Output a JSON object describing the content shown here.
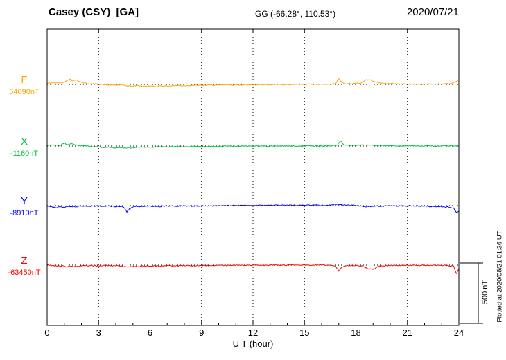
{
  "header": {
    "station": "Casey (CSY)  [GA]",
    "coords": "GG (-66.28°, 110.53°)",
    "date": "2020/07/21"
  },
  "xaxis": {
    "label": "U T (hour)"
  },
  "scale_bar": {
    "label": "500 nT",
    "nT": 500
  },
  "plotted_at": "Plotted at 2020/08/21 01:36 UT",
  "chart_data": {
    "type": "line",
    "title": "Casey (CSY) [GA] magnetogram",
    "subtitle": "GG (-66.28°, 110.53°)",
    "date": "2020/07/21",
    "xlabel": "U T (hour)",
    "x_range": [
      0,
      24
    ],
    "x_ticks": [
      0,
      3,
      6,
      9,
      12,
      15,
      18,
      21,
      24
    ],
    "x_minor_step": 1,
    "grid": "vertical-dotted-at-major-ticks, dotted-baseline-per-trace",
    "scale_nT_per_div": 500,
    "noise_nT": 4,
    "series": [
      {
        "name": "F",
        "baseline_label": "64090nT",
        "color": "#ffa500",
        "points": [
          [
            0,
            10
          ],
          [
            0.3,
            12
          ],
          [
            0.8,
            15
          ],
          [
            1,
            20
          ],
          [
            1.3,
            45
          ],
          [
            1.5,
            30
          ],
          [
            1.7,
            38
          ],
          [
            2,
            18
          ],
          [
            2.3,
            8
          ],
          [
            2.6,
            4
          ],
          [
            3,
            2
          ],
          [
            3.5,
            -3
          ],
          [
            4,
            -6
          ],
          [
            4.3,
            -2
          ],
          [
            4.6,
            -10
          ],
          [
            5,
            -14
          ],
          [
            5.3,
            -8
          ],
          [
            5.6,
            -16
          ],
          [
            6,
            -12
          ],
          [
            6.3,
            -18
          ],
          [
            6.6,
            -10
          ],
          [
            7,
            -14
          ],
          [
            7.5,
            -8
          ],
          [
            8,
            -10
          ],
          [
            8.5,
            -6
          ],
          [
            9,
            -8
          ],
          [
            9.5,
            -4
          ],
          [
            10,
            -6
          ],
          [
            10.5,
            -2
          ],
          [
            11,
            -4
          ],
          [
            11.5,
            -2
          ],
          [
            12,
            -3
          ],
          [
            12.5,
            -1
          ],
          [
            13,
            -2
          ],
          [
            13.5,
            0
          ],
          [
            14,
            -1
          ],
          [
            14.5,
            1
          ],
          [
            15,
            0
          ],
          [
            15.5,
            1
          ],
          [
            16,
            0
          ],
          [
            16.5,
            2
          ],
          [
            16.8,
            5
          ],
          [
            17,
            48
          ],
          [
            17.2,
            15
          ],
          [
            17.5,
            5
          ],
          [
            18,
            8
          ],
          [
            18.3,
            12
          ],
          [
            18.6,
            40
          ],
          [
            18.9,
            35
          ],
          [
            19.2,
            18
          ],
          [
            19.5,
            10
          ],
          [
            20,
            6
          ],
          [
            20.5,
            4
          ],
          [
            21,
            3
          ],
          [
            21.5,
            2
          ],
          [
            22,
            2
          ],
          [
            22.5,
            3
          ],
          [
            23,
            4
          ],
          [
            23.5,
            6
          ],
          [
            23.8,
            20
          ],
          [
            24,
            40
          ]
        ]
      },
      {
        "name": "X",
        "baseline_label": "-1160nT",
        "color": "#00c040",
        "points": [
          [
            0,
            5
          ],
          [
            0.4,
            8
          ],
          [
            0.8,
            6
          ],
          [
            1,
            25
          ],
          [
            1.2,
            10
          ],
          [
            1.4,
            20
          ],
          [
            1.6,
            8
          ],
          [
            2,
            2
          ],
          [
            2.5,
            -2
          ],
          [
            3,
            -8
          ],
          [
            3.3,
            -14
          ],
          [
            3.6,
            -10
          ],
          [
            4,
            -16
          ],
          [
            4.3,
            -12
          ],
          [
            4.6,
            -18
          ],
          [
            5,
            -12
          ],
          [
            5.5,
            -8
          ],
          [
            6,
            -10
          ],
          [
            6.5,
            -6
          ],
          [
            7,
            -8
          ],
          [
            7.5,
            -4
          ],
          [
            8,
            -6
          ],
          [
            8.5,
            -3
          ],
          [
            9,
            -4
          ],
          [
            9.5,
            -2
          ],
          [
            10,
            -3
          ],
          [
            10.5,
            -1
          ],
          [
            11,
            -2
          ],
          [
            12,
            -1
          ],
          [
            13,
            0
          ],
          [
            14,
            0
          ],
          [
            15,
            1
          ],
          [
            16,
            0
          ],
          [
            16.6,
            2
          ],
          [
            16.9,
            8
          ],
          [
            17.1,
            42
          ],
          [
            17.3,
            12
          ],
          [
            17.6,
            4
          ],
          [
            18,
            6
          ],
          [
            18.4,
            10
          ],
          [
            18.7,
            8
          ],
          [
            19,
            5
          ],
          [
            19.5,
            3
          ],
          [
            20,
            2
          ],
          [
            21,
            1
          ],
          [
            22,
            0
          ],
          [
            23,
            1
          ],
          [
            23.5,
            2
          ],
          [
            24,
            0
          ]
        ]
      },
      {
        "name": "Y",
        "baseline_label": "-8910nT",
        "color": "#0000ff",
        "points": [
          [
            0,
            -5
          ],
          [
            0.3,
            -12
          ],
          [
            0.5,
            -18
          ],
          [
            0.7,
            -10
          ],
          [
            1,
            -14
          ],
          [
            1.3,
            -6
          ],
          [
            1.6,
            -10
          ],
          [
            2,
            -4
          ],
          [
            2.5,
            -6
          ],
          [
            3,
            -2
          ],
          [
            3.3,
            -6
          ],
          [
            3.6,
            -3
          ],
          [
            4,
            -8
          ],
          [
            4.3,
            -6
          ],
          [
            4.5,
            -20
          ],
          [
            4.65,
            -55
          ],
          [
            4.8,
            -25
          ],
          [
            5,
            -12
          ],
          [
            5.3,
            -6
          ],
          [
            5.6,
            -10
          ],
          [
            6,
            -4
          ],
          [
            6.5,
            -8
          ],
          [
            7,
            -3
          ],
          [
            7.5,
            -6
          ],
          [
            8,
            -2
          ],
          [
            8.5,
            -4
          ],
          [
            9,
            -1
          ],
          [
            9.5,
            -3
          ],
          [
            10,
            0
          ],
          [
            10.5,
            2
          ],
          [
            11,
            0
          ],
          [
            11.5,
            3
          ],
          [
            12,
            2
          ],
          [
            12.5,
            4
          ],
          [
            13,
            2
          ],
          [
            13.5,
            3
          ],
          [
            14,
            4
          ],
          [
            14.5,
            2
          ],
          [
            15,
            3
          ],
          [
            15.5,
            5
          ],
          [
            16,
            3
          ],
          [
            16.5,
            4
          ],
          [
            16.9,
            14
          ],
          [
            17.1,
            8
          ],
          [
            17.4,
            5
          ],
          [
            17.7,
            3
          ],
          [
            18,
            2
          ],
          [
            18.3,
            -4
          ],
          [
            18.6,
            -10
          ],
          [
            18.9,
            -6
          ],
          [
            19.2,
            -3
          ],
          [
            19.5,
            -5
          ],
          [
            20,
            -2
          ],
          [
            20.5,
            -4
          ],
          [
            21,
            -2
          ],
          [
            21.5,
            -3
          ],
          [
            22,
            -5
          ],
          [
            22.5,
            -8
          ],
          [
            23,
            -10
          ],
          [
            23.4,
            -12
          ],
          [
            23.7,
            -20
          ],
          [
            23.85,
            -55
          ],
          [
            24,
            -45
          ]
        ]
      },
      {
        "name": "Z",
        "baseline_label": "-63450nT",
        "color": "#ff0000",
        "points": [
          [
            0,
            2
          ],
          [
            0.3,
            -4
          ],
          [
            0.6,
            -8
          ],
          [
            0.9,
            -4
          ],
          [
            1.1,
            -14
          ],
          [
            1.4,
            -8
          ],
          [
            1.7,
            -12
          ],
          [
            2,
            -6
          ],
          [
            2.5,
            -4
          ],
          [
            3,
            -6
          ],
          [
            3.5,
            -3
          ],
          [
            3.8,
            -8
          ],
          [
            4.1,
            -4
          ],
          [
            4.4,
            -10
          ],
          [
            4.7,
            -16
          ],
          [
            5,
            -8
          ],
          [
            5.3,
            -12
          ],
          [
            5.6,
            -6
          ],
          [
            6,
            -10
          ],
          [
            6.3,
            -5
          ],
          [
            6.6,
            -9
          ],
          [
            7,
            -4
          ],
          [
            7.5,
            -7
          ],
          [
            8,
            -3
          ],
          [
            8.5,
            -5
          ],
          [
            9,
            -2
          ],
          [
            9.5,
            -4
          ],
          [
            10,
            -1
          ],
          [
            10.5,
            -3
          ],
          [
            11,
            0
          ],
          [
            11.5,
            -2
          ],
          [
            12,
            0
          ],
          [
            12.5,
            -1
          ],
          [
            13,
            0
          ],
          [
            13.5,
            1
          ],
          [
            14,
            0
          ],
          [
            14.5,
            1
          ],
          [
            15,
            0
          ],
          [
            15.5,
            1
          ],
          [
            16,
            0
          ],
          [
            16.5,
            -1
          ],
          [
            16.8,
            -4
          ],
          [
            17,
            -50
          ],
          [
            17.15,
            -20
          ],
          [
            17.3,
            -8
          ],
          [
            17.6,
            -4
          ],
          [
            18,
            -2
          ],
          [
            18.4,
            -8
          ],
          [
            18.7,
            -30
          ],
          [
            19,
            -35
          ],
          [
            19.3,
            -12
          ],
          [
            19.6,
            -6
          ],
          [
            20,
            -3
          ],
          [
            20.5,
            -2
          ],
          [
            21,
            -1
          ],
          [
            21.5,
            -2
          ],
          [
            22,
            -1
          ],
          [
            22.5,
            -2
          ],
          [
            23,
            -3
          ],
          [
            23.4,
            -4
          ],
          [
            23.7,
            -8
          ],
          [
            23.85,
            -70
          ],
          [
            24,
            -30
          ]
        ]
      }
    ]
  }
}
